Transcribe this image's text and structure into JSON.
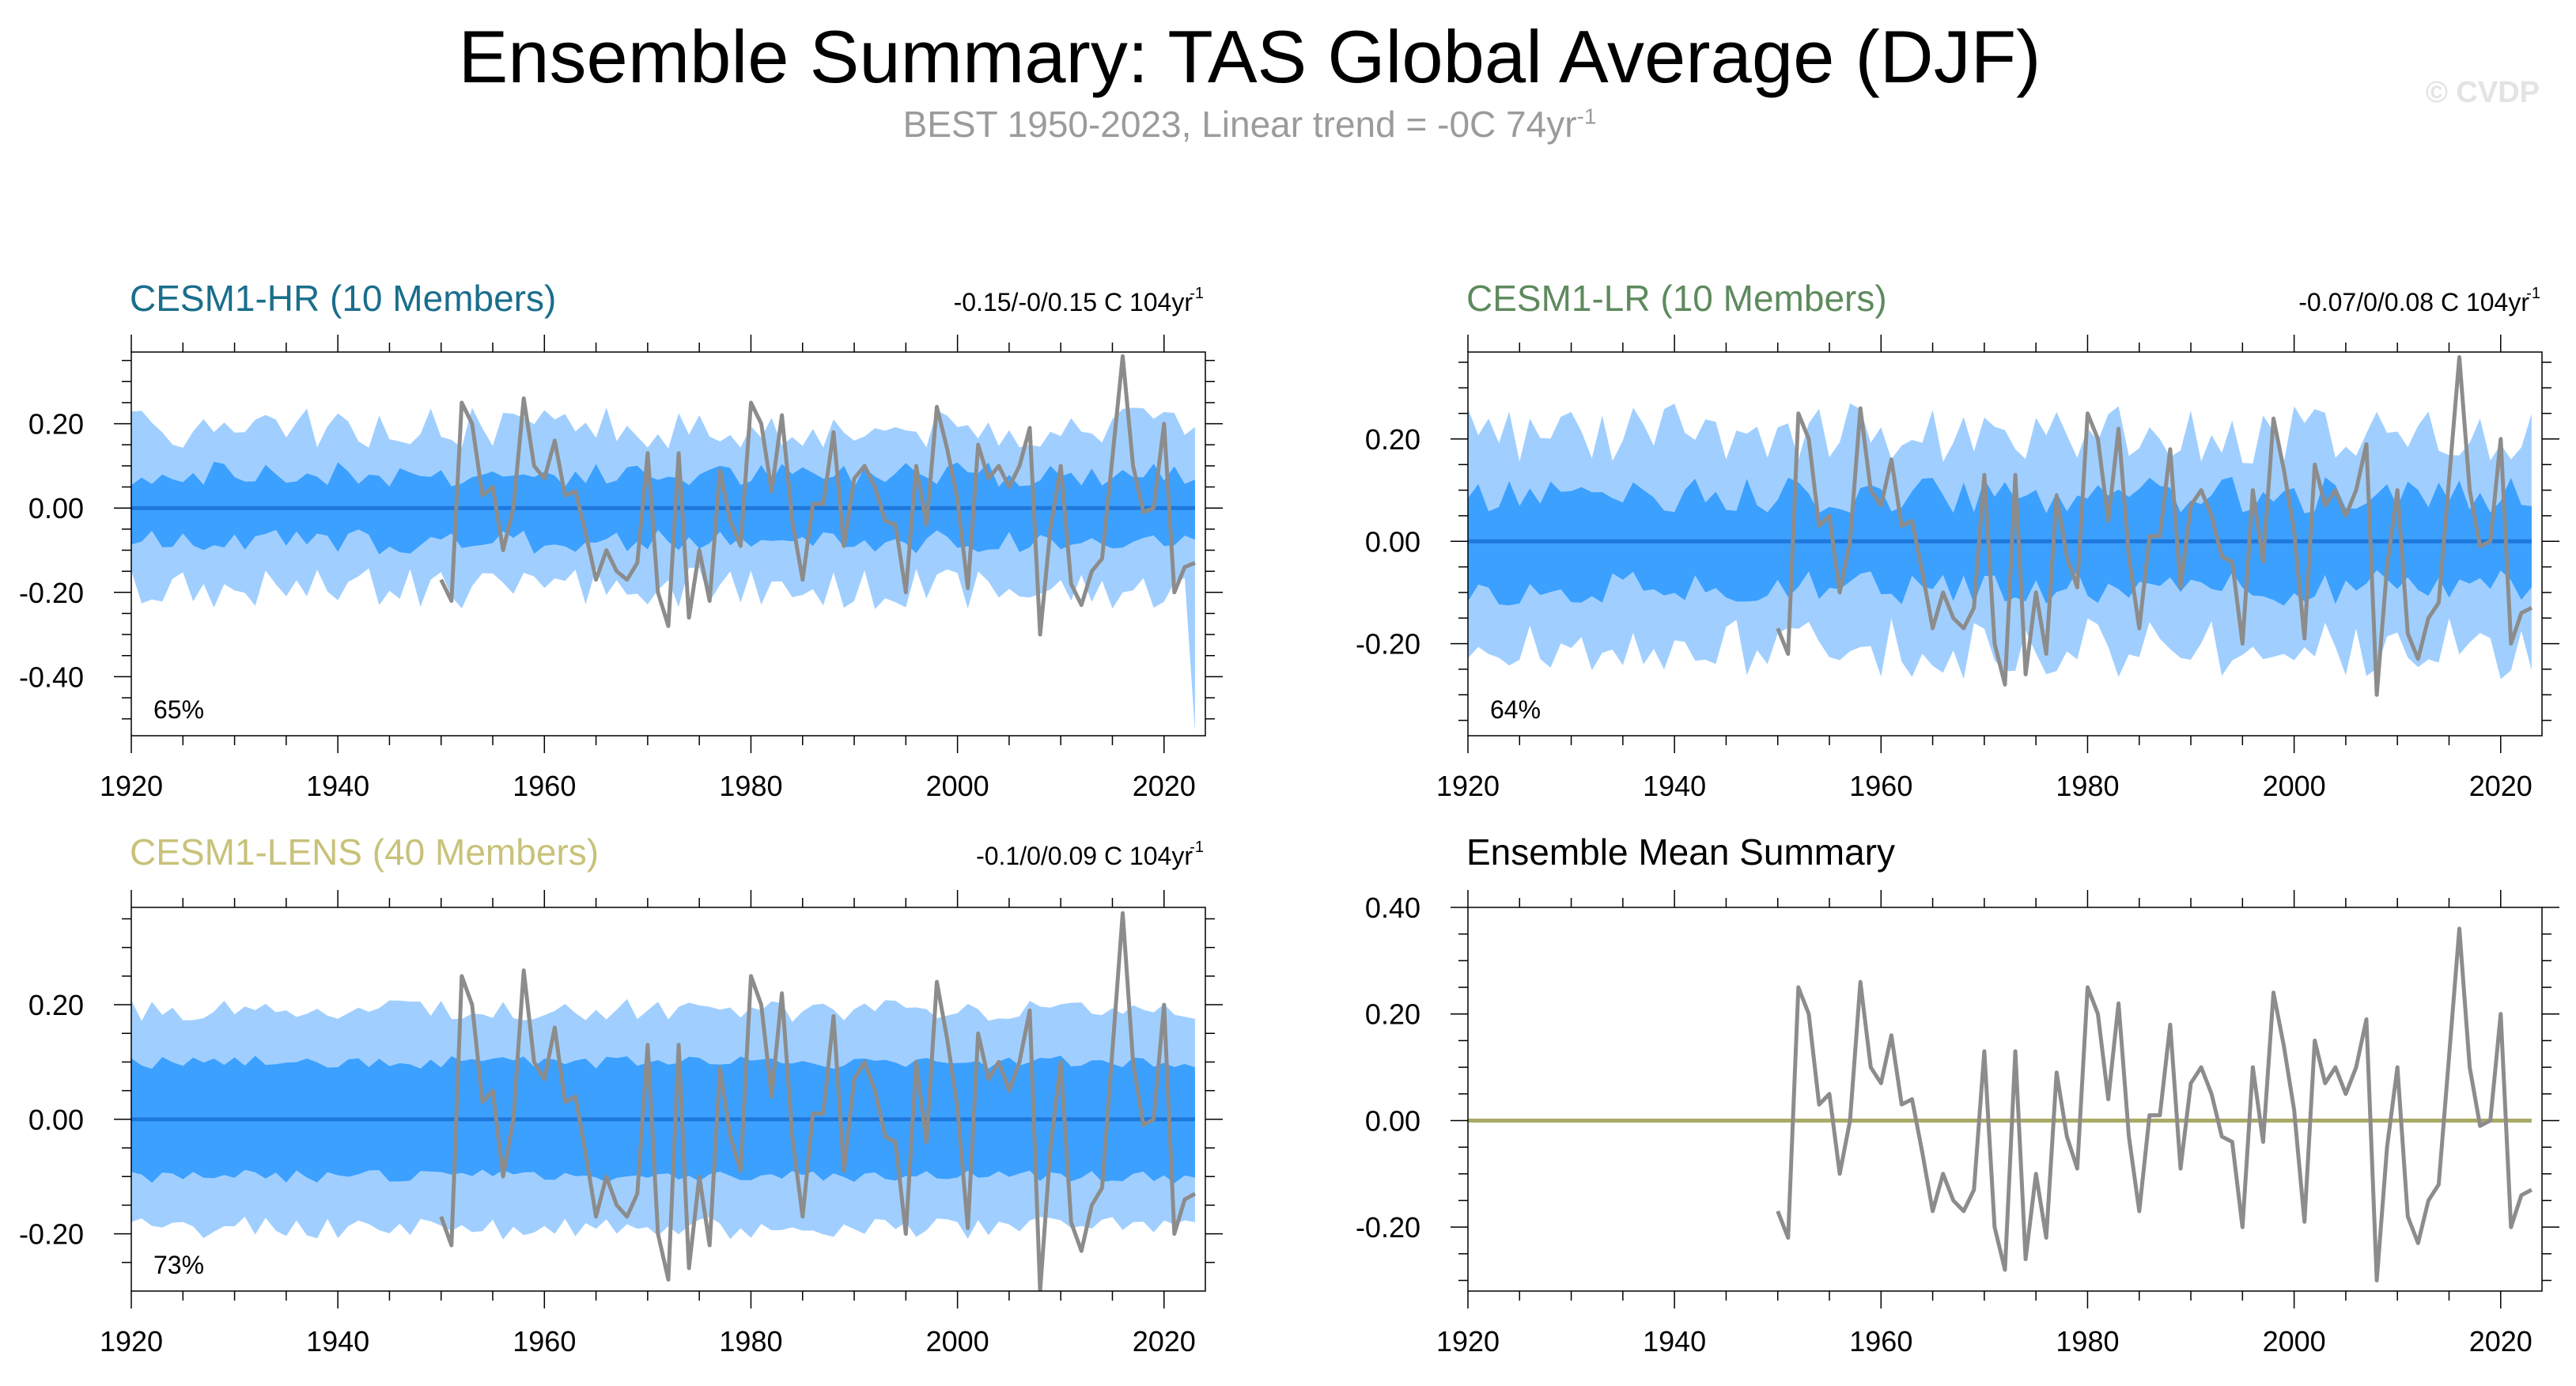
{
  "title": "Ensemble Summary: TAS Global Average (DJF)",
  "subtitle_main": "BEST 1950-2023, Linear trend = -0C 74yr",
  "subtitle_sup": "-1",
  "copyright": "© CVDP",
  "colors": {
    "band_outer": "#a0cfff",
    "band_inner": "#3ca0ff",
    "member_mean": "#1e78dc",
    "observed": "#8c8c8c",
    "ensemble_mean_line": "#aaaa66",
    "title_hr": "#1a6e8c",
    "title_lr": "#5e8a5e",
    "title_lens": "#c8c27a"
  },
  "observed": {
    "years": [
      1950,
      1951,
      1952,
      1953,
      1954,
      1955,
      1956,
      1957,
      1958,
      1959,
      1960,
      1961,
      1962,
      1963,
      1964,
      1965,
      1966,
      1967,
      1968,
      1969,
      1970,
      1971,
      1972,
      1973,
      1974,
      1975,
      1976,
      1977,
      1978,
      1979,
      1980,
      1981,
      1982,
      1983,
      1984,
      1985,
      1986,
      1987,
      1988,
      1989,
      1990,
      1991,
      1992,
      1993,
      1994,
      1995,
      1996,
      1997,
      1998,
      1999,
      2000,
      2001,
      2002,
      2003,
      2004,
      2005,
      2006,
      2007,
      2008,
      2009,
      2010,
      2011,
      2012,
      2013,
      2014,
      2015,
      2016,
      2017,
      2018,
      2019,
      2020,
      2021,
      2022,
      2023
    ],
    "values": [
      -0.17,
      -0.22,
      0.25,
      0.2,
      0.03,
      0.05,
      -0.1,
      0.0,
      0.26,
      0.1,
      0.07,
      0.16,
      0.03,
      0.04,
      -0.06,
      -0.17,
      -0.1,
      -0.15,
      -0.17,
      -0.13,
      0.13,
      -0.2,
      -0.28,
      0.13,
      -0.26,
      -0.1,
      -0.22,
      0.09,
      -0.03,
      -0.09,
      0.25,
      0.2,
      0.04,
      0.22,
      -0.03,
      -0.17,
      0.01,
      0.01,
      0.18,
      -0.09,
      0.07,
      0.1,
      0.05,
      -0.03,
      -0.04,
      -0.2,
      0.1,
      -0.04,
      0.24,
      0.14,
      0.02,
      -0.19,
      0.15,
      0.07,
      0.1,
      0.05,
      0.1,
      0.19,
      -0.3,
      -0.05,
      0.1,
      -0.18,
      -0.23,
      -0.15,
      -0.12,
      0.12,
      0.36,
      0.1,
      -0.01,
      0.0,
      0.2,
      -0.2,
      -0.14,
      -0.13
    ]
  },
  "panels": [
    {
      "id": "hr",
      "title": "CESM1-HR (10 Members)",
      "trend": "-0.15/-0/0.15 C 104yr",
      "trend_sup": "-1",
      "pct": "65%",
      "color_key": "title_hr",
      "chart_data": {
        "type": "area",
        "x_range": [
          1920,
          2023
        ],
        "xlim": [
          1920,
          2024
        ],
        "ylim": [
          -0.54,
          0.37
        ],
        "yticks": [
          -0.4,
          -0.2,
          0.0,
          0.2
        ],
        "ytick_labels": [
          "-0.40",
          "-0.20",
          "0.00",
          "0.20"
        ],
        "xticks": [
          1920,
          1940,
          1960,
          1980,
          2000,
          2020
        ],
        "outer_amp": 0.19,
        "inner_amp": 0.08,
        "noise_amp": 0.05,
        "outer_low_end": -0.53,
        "series": [
          "outer band",
          "inner band",
          "ensemble member mean",
          "observed"
        ]
      }
    },
    {
      "id": "lr",
      "title": "CESM1-LR (10 Members)",
      "trend": "-0.07/0/0.08 C 104yr",
      "trend_sup": "-1",
      "pct": "64%",
      "color_key": "title_lr",
      "chart_data": {
        "type": "area",
        "x_range": [
          1920,
          2023
        ],
        "xlim": [
          1920,
          2024
        ],
        "ylim": [
          -0.38,
          0.37
        ],
        "yticks": [
          -0.2,
          0.0,
          0.2
        ],
        "ytick_labels": [
          "-0.20",
          "0.00",
          "0.20"
        ],
        "xticks": [
          1920,
          1940,
          1960,
          1980,
          2000,
          2020
        ],
        "outer_amp": 0.21,
        "inner_amp": 0.09,
        "noise_amp": 0.06,
        "outer_low_end": null,
        "series": [
          "outer band",
          "inner band",
          "ensemble member mean",
          "observed"
        ]
      }
    },
    {
      "id": "lens",
      "title": "CESM1-LENS (40 Members)",
      "trend": "-0.1/0/0.09 C 104yr",
      "trend_sup": "-1",
      "pct": "73%",
      "color_key": "title_lens",
      "chart_data": {
        "type": "area",
        "x_range": [
          1920,
          2023
        ],
        "xlim": [
          1920,
          2024
        ],
        "ylim": [
          -0.3,
          0.37
        ],
        "yticks": [
          -0.2,
          0.0,
          0.2
        ],
        "ytick_labels": [
          "-0.20",
          "0.00",
          "0.20"
        ],
        "xticks": [
          1920,
          1940,
          1960,
          1980,
          2000,
          2020
        ],
        "outer_amp": 0.19,
        "inner_amp": 0.1,
        "noise_amp": 0.02,
        "outer_low_end": null,
        "series": [
          "outer band",
          "inner band",
          "ensemble member mean",
          "observed"
        ]
      }
    },
    {
      "id": "mean",
      "title": "Ensemble Mean Summary",
      "trend": "",
      "trend_sup": "",
      "pct": "",
      "color_key": "",
      "chart_data": {
        "type": "line",
        "x_range": [
          1920,
          2023
        ],
        "xlim": [
          1920,
          2024
        ],
        "ylim": [
          -0.32,
          0.4
        ],
        "yticks": [
          -0.2,
          0.0,
          0.2,
          0.4
        ],
        "ytick_labels": [
          "-0.20",
          "0.00",
          "0.20",
          "0.40"
        ],
        "xticks": [
          1920,
          1940,
          1960,
          1980,
          2000,
          2020
        ],
        "series": [
          "ensemble mean",
          "observed"
        ]
      }
    }
  ]
}
